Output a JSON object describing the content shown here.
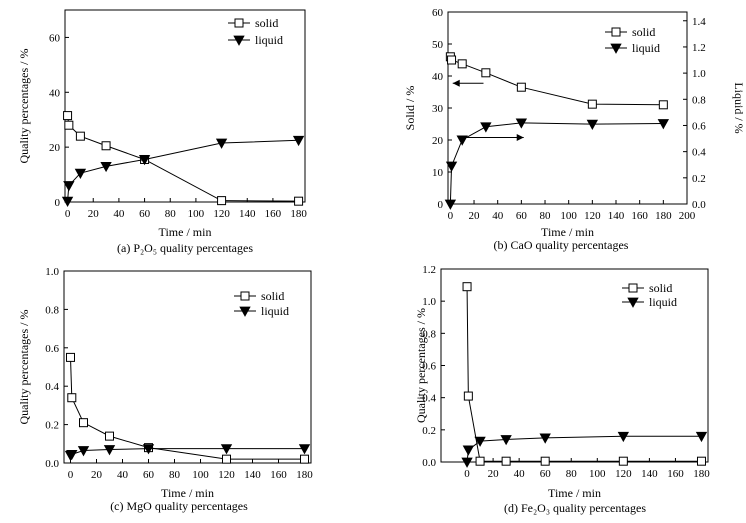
{
  "chart_data": [
    {
      "id": "a",
      "type": "line",
      "caption": "(a) P₂O₅ quality percentages",
      "xlabel": "Time / min",
      "ylabel": "Quality percentages / %",
      "xlim": [
        -2,
        185
      ],
      "ylim": [
        0,
        70
      ],
      "xticks": [
        0,
        20,
        40,
        60,
        80,
        100,
        120,
        140,
        160,
        180
      ],
      "yticks": [
        0,
        20,
        40,
        60
      ],
      "legend_position": "top-right",
      "series": [
        {
          "name": "solid",
          "marker": "open-square",
          "x": [
            0,
            1,
            10,
            30,
            60,
            120,
            180
          ],
          "y": [
            31.5,
            28,
            24,
            20.5,
            15.5,
            0.5,
            0.3
          ]
        },
        {
          "name": "liquid",
          "marker": "filled-triangle-down",
          "x": [
            0,
            1,
            10,
            30,
            60,
            120,
            180
          ],
          "y": [
            0.3,
            6,
            10.5,
            13,
            15.5,
            21.5,
            22.5
          ]
        }
      ]
    },
    {
      "id": "b",
      "type": "line",
      "caption": "(b) CaO quality percentages",
      "xlabel": "Time / min",
      "ylabel": "Solid / %",
      "ylabel_right": "Liquid / %",
      "xlim": [
        -2,
        200
      ],
      "ylim": [
        0,
        60
      ],
      "ylim_right": [
        0,
        1.467
      ],
      "xticks": [
        0,
        20,
        40,
        60,
        80,
        100,
        120,
        140,
        160,
        180,
        200
      ],
      "yticks": [
        0,
        10,
        20,
        30,
        40,
        50,
        60
      ],
      "yticks_right": [
        "0.0",
        "0.2",
        "0.4",
        "0.6",
        "0.8",
        "1.0",
        "1.2",
        "1.4"
      ],
      "legend_position": "top-right",
      "series": [
        {
          "name": "solid",
          "axis": "left",
          "marker": "open-square",
          "x": [
            0,
            1,
            10,
            30,
            60,
            120,
            180
          ],
          "y": [
            46,
            45,
            43.8,
            41,
            36.5,
            31.2,
            31
          ]
        },
        {
          "name": "liquid",
          "axis": "right",
          "marker": "filled-triangle-down",
          "x": [
            0,
            1,
            10,
            30,
            60,
            120,
            180
          ],
          "y": [
            0,
            0.29,
            0.49,
            0.59,
            0.62,
            0.61,
            0.615
          ]
        }
      ]
    },
    {
      "id": "c",
      "type": "line",
      "caption": "(c) MgO quality percentages",
      "xlabel": "Time / min",
      "ylabel": "Quality percentages / %",
      "xlim": [
        -5,
        185
      ],
      "ylim": [
        0,
        1.0
      ],
      "xticks": [
        0,
        20,
        40,
        60,
        80,
        100,
        120,
        140,
        160,
        180
      ],
      "yticks": [
        "0.0",
        "0.2",
        "0.4",
        "0.6",
        "0.8",
        "1.0"
      ],
      "legend_position": "top-right",
      "series": [
        {
          "name": "solid",
          "marker": "open-square",
          "x": [
            0,
            1,
            10,
            30,
            60,
            120,
            180
          ],
          "y": [
            0.55,
            0.34,
            0.21,
            0.14,
            0.08,
            0.02,
            0.02
          ]
        },
        {
          "name": "liquid",
          "marker": "filled-triangle-down",
          "x": [
            0,
            1,
            10,
            30,
            60,
            120,
            180
          ],
          "y": [
            0.04,
            0.045,
            0.065,
            0.07,
            0.075,
            0.075,
            0.075
          ]
        }
      ]
    },
    {
      "id": "d",
      "type": "line",
      "caption": "(d) Fe₂O₃ quality percentages",
      "xlabel": "Time / min",
      "ylabel": "Quality percentages / %",
      "xlim": [
        -20,
        185
      ],
      "ylim": [
        0,
        1.2
      ],
      "xticks": [
        0,
        20,
        40,
        60,
        80,
        100,
        120,
        140,
        160,
        180
      ],
      "yticks": [
        "0.0",
        "0.2",
        "0.4",
        "0.6",
        "0.8",
        "1.0",
        "1.2"
      ],
      "legend_position": "top-right",
      "series": [
        {
          "name": "solid",
          "marker": "open-square",
          "x": [
            0,
            1,
            10,
            30,
            60,
            120,
            180
          ],
          "y": [
            1.09,
            0.41,
            0.005,
            0.005,
            0.005,
            0.005,
            0.005
          ]
        },
        {
          "name": "liquid",
          "marker": "filled-triangle-down",
          "x": [
            0,
            1,
            10,
            30,
            60,
            120,
            180
          ],
          "y": [
            0.0,
            0.075,
            0.13,
            0.14,
            0.15,
            0.16,
            0.16
          ]
        }
      ]
    }
  ]
}
